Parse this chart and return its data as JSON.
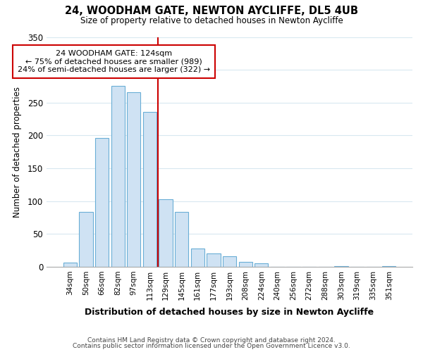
{
  "title1": "24, WOODHAM GATE, NEWTON AYCLIFFE, DL5 4UB",
  "title2": "Size of property relative to detached houses in Newton Aycliffe",
  "xlabel": "Distribution of detached houses by size in Newton Aycliffe",
  "ylabel": "Number of detached properties",
  "footer1": "Contains HM Land Registry data © Crown copyright and database right 2024.",
  "footer2": "Contains public sector information licensed under the Open Government Licence v3.0.",
  "bar_labels": [
    "34sqm",
    "50sqm",
    "66sqm",
    "82sqm",
    "97sqm",
    "113sqm",
    "129sqm",
    "145sqm",
    "161sqm",
    "177sqm",
    "193sqm",
    "208sqm",
    "224sqm",
    "240sqm",
    "256sqm",
    "272sqm",
    "288sqm",
    "303sqm",
    "319sqm",
    "335sqm",
    "351sqm"
  ],
  "bar_values": [
    6,
    84,
    196,
    275,
    266,
    236,
    103,
    84,
    28,
    20,
    16,
    7,
    5,
    0,
    0,
    0,
    0,
    1,
    0,
    0,
    1
  ],
  "bar_color": "#cfe2f3",
  "bar_edge_color": "#6aaed6",
  "annotation_title": "24 WOODHAM GATE: 124sqm",
  "annotation_line1": "← 75% of detached houses are smaller (989)",
  "annotation_line2": "24% of semi-detached houses are larger (322) →",
  "vline_bar_index": 6,
  "ylim": [
    0,
    350
  ],
  "yticks": [
    0,
    50,
    100,
    150,
    200,
    250,
    300,
    350
  ],
  "vline_color": "#cc0000",
  "annotation_box_edge": "#cc0000",
  "background_color": "#ffffff",
  "grid_color": "#d8e8f0"
}
